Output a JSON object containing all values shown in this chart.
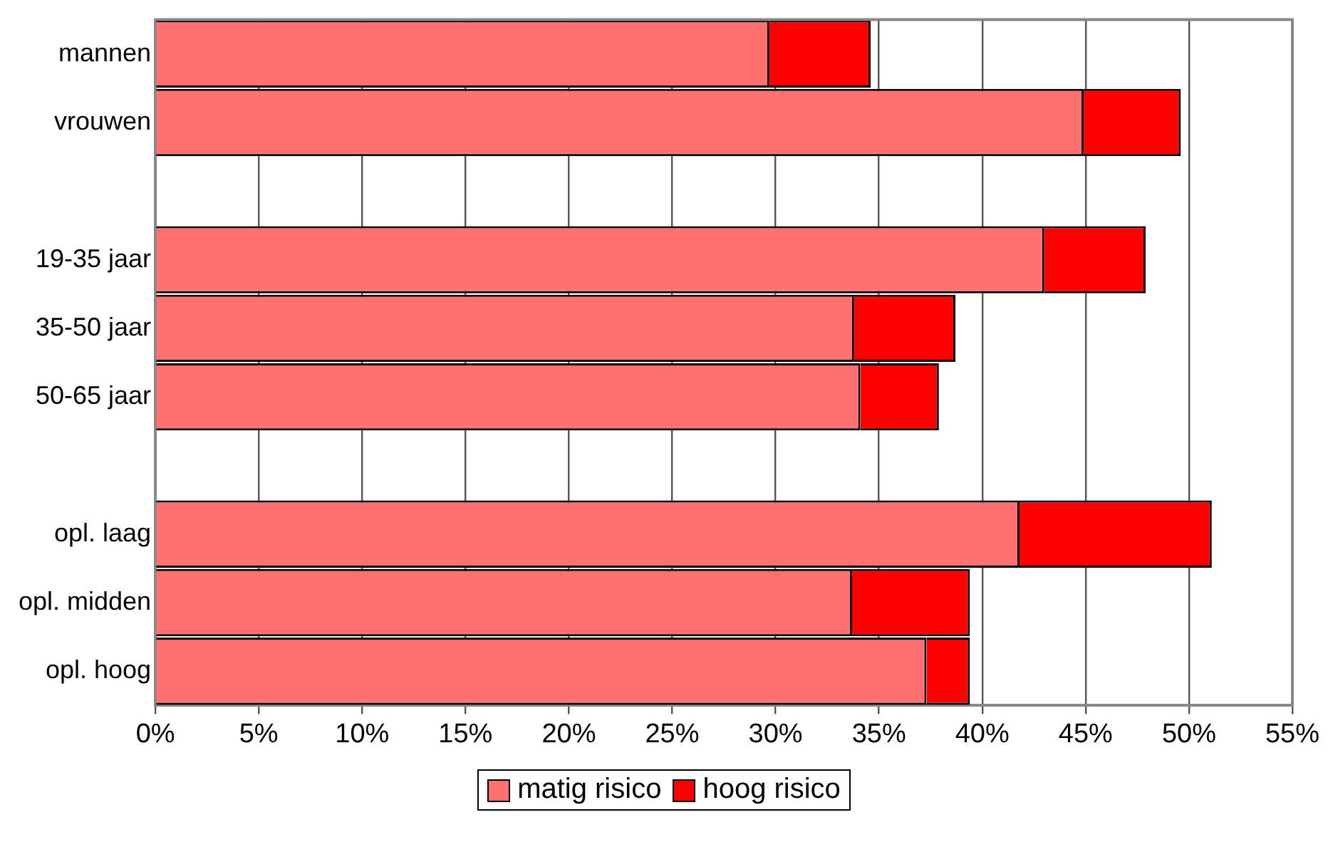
{
  "chart_data": {
    "type": "bar",
    "orientation": "horizontal",
    "stacked": true,
    "categories": [
      "mannen",
      "vrouwen",
      null,
      "19-35 jaar",
      "35-50 jaar",
      "50-65 jaar",
      null,
      "opl. laag",
      "opl. midden",
      "opl. hoog"
    ],
    "series": [
      {
        "name": "matig risico",
        "color": "#ff7070",
        "values": [
          29.7,
          44.9,
          null,
          43.0,
          33.8,
          34.1,
          null,
          41.8,
          33.7,
          37.3
        ]
      },
      {
        "name": "hoog risico",
        "color": "#ff0000",
        "values": [
          4.9,
          4.7,
          null,
          4.9,
          4.9,
          3.8,
          null,
          9.3,
          5.7,
          2.1
        ]
      }
    ],
    "xlim": [
      0,
      55
    ],
    "xticks": [
      {
        "value": 0,
        "label": "0%"
      },
      {
        "value": 5,
        "label": "5%"
      },
      {
        "value": 10,
        "label": "10%"
      },
      {
        "value": 15,
        "label": "15%"
      },
      {
        "value": 20,
        "label": "20%"
      },
      {
        "value": 25,
        "label": "25%"
      },
      {
        "value": 30,
        "label": "30%"
      },
      {
        "value": 35,
        "label": "35%"
      },
      {
        "value": 40,
        "label": "40%"
      },
      {
        "value": 45,
        "label": "45%"
      },
      {
        "value": 50,
        "label": "50%"
      },
      {
        "value": 55,
        "label": "55%"
      }
    ],
    "grid": "x",
    "legend": "bottom"
  }
}
